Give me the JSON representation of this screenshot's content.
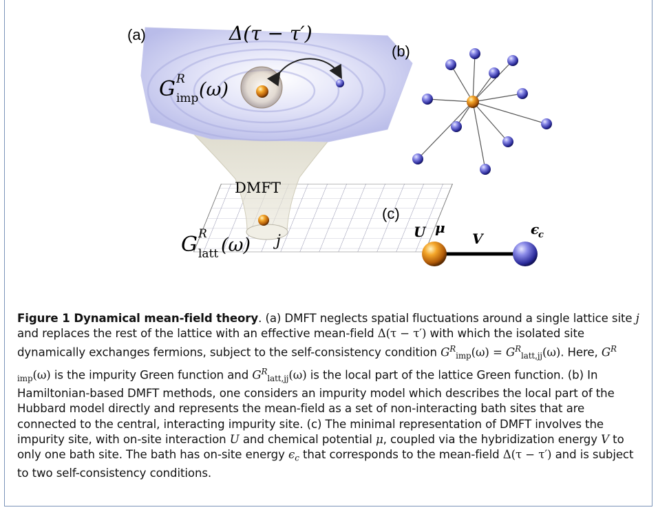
{
  "figure": {
    "panel_a_label": "(a)",
    "panel_b_label": "(b)",
    "panel_c_label": "(c)",
    "delta_label": "Δ(τ − τ′)",
    "g_imp_label": "G",
    "g_imp_sup": "R",
    "g_imp_sub": "imp",
    "g_imp_arg": "(ω)",
    "dmft_label": "DMFT",
    "g_latt_label": "G",
    "g_latt_sup": "R",
    "g_latt_sub": "latt",
    "g_latt_arg": "(ω)",
    "site_label": "j",
    "c_U": "U",
    "c_mu": "μ",
    "c_V": "V",
    "c_eps": "ϵ",
    "c_eps_sub": "c",
    "colors": {
      "impurity": "#e08a1a",
      "bath": "#3f3fb0",
      "cloud": "#c7c9ef",
      "frame": "#7a93b8"
    }
  },
  "caption": {
    "title": "Figure 1 Dynamical mean-field theory",
    "s1": ". (a) DMFT neglects spatial fluctuations around a single lattice site ",
    "j": "j",
    "s2": " and replaces the rest of the lattice with an effective mean-field ",
    "delta": "Δ(τ − τ′)",
    "s3": " with which the isolated site dynamically exchanges fermions, subject to the self-consistency condition ",
    "G": "G",
    "R": "R",
    "imp": "imp",
    "omega": "(ω)",
    "eq": " = ",
    "lattjj": "latt,jj",
    "s4": ". Here, ",
    "s5": " is the impurity Green function and ",
    "s6": " is the local part of the lattice Green function. (b) In Hamiltonian-based DMFT methods, one considers an impurity model which describes the local part of the Hubbard model directly and represents the mean-field as a set of non-interacting bath sites that are connected to the central, interacting impurity site. (c) The minimal representation of DMFT involves the impurity site, with on-site interaction ",
    "U": "U",
    "s7": " and chemical potential ",
    "mu": "μ",
    "s8": ", coupled via the hybridization energy ",
    "V": "V",
    "s9": " to only one bath site. The bath has on-site energy ",
    "eps": "ϵ",
    "c": "c",
    "s10": " that corresponds to the mean-field ",
    "s11": " and is subject to two self-consistency conditions."
  }
}
